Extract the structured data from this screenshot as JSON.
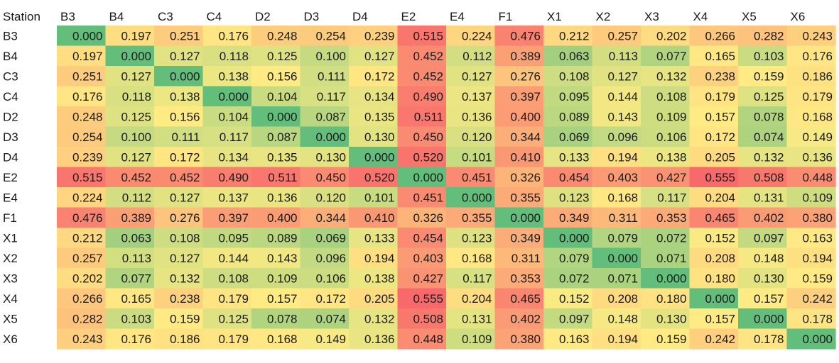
{
  "chart_data": {
    "type": "heatmap",
    "corner_label": "Station",
    "columns": [
      "B3",
      "B4",
      "C3",
      "C4",
      "D2",
      "D3",
      "D4",
      "E2",
      "E4",
      "F1",
      "X1",
      "X2",
      "X3",
      "X4",
      "X5",
      "X6"
    ],
    "rows": [
      "B3",
      "B4",
      "C3",
      "C4",
      "D2",
      "D3",
      "D4",
      "E2",
      "E4",
      "F1",
      "X1",
      "X2",
      "X3",
      "X4",
      "X5",
      "X6"
    ],
    "values": [
      [
        "0.000",
        "0.197",
        "0.251",
        "0.176",
        "0.248",
        "0.254",
        "0.239",
        "0.515",
        "0.224",
        "0.476",
        "0.212",
        "0.257",
        "0.202",
        "0.266",
        "0.282",
        "0.243"
      ],
      [
        "0.197",
        "0.000",
        "0.127",
        "0.118",
        "0.125",
        "0.100",
        "0.127",
        "0.452",
        "0.112",
        "0.389",
        "0.063",
        "0.113",
        "0.077",
        "0.165",
        "0.103",
        "0.176"
      ],
      [
        "0.251",
        "0.127",
        "0.000",
        "0.138",
        "0.156",
        "0.111",
        "0.172",
        "0.452",
        "0.127",
        "0.276",
        "0.108",
        "0.127",
        "0.132",
        "0.238",
        "0.159",
        "0.186"
      ],
      [
        "0.176",
        "0.118",
        "0.138",
        "0.000",
        "0.104",
        "0.117",
        "0.134",
        "0.490",
        "0.137",
        "0.397",
        "0.095",
        "0.144",
        "0.108",
        "0.179",
        "0.125",
        "0.179"
      ],
      [
        "0.248",
        "0.125",
        "0.156",
        "0.104",
        "0.000",
        "0.087",
        "0.135",
        "0.511",
        "0.136",
        "0.400",
        "0.089",
        "0.143",
        "0.109",
        "0.157",
        "0.078",
        "0.168"
      ],
      [
        "0.254",
        "0.100",
        "0.111",
        "0.117",
        "0.087",
        "0.000",
        "0.130",
        "0.450",
        "0.120",
        "0.344",
        "0.069",
        "0.096",
        "0.106",
        "0.172",
        "0.074",
        "0.149"
      ],
      [
        "0.239",
        "0.127",
        "0.172",
        "0.134",
        "0.135",
        "0.130",
        "0.000",
        "0.520",
        "0.101",
        "0.410",
        "0.133",
        "0.194",
        "0.138",
        "0.205",
        "0.132",
        "0.136"
      ],
      [
        "0.515",
        "0.452",
        "0.452",
        "0.490",
        "0.511",
        "0.450",
        "0.520",
        "0.000",
        "0.451",
        "0.326",
        "0.454",
        "0.403",
        "0.427",
        "0.555",
        "0.508",
        "0.448"
      ],
      [
        "0.224",
        "0.112",
        "0.127",
        "0.137",
        "0.136",
        "0.120",
        "0.101",
        "0.451",
        "0.000",
        "0.355",
        "0.123",
        "0.168",
        "0.117",
        "0.204",
        "0.131",
        "0.109"
      ],
      [
        "0.476",
        "0.389",
        "0.276",
        "0.397",
        "0.400",
        "0.344",
        "0.410",
        "0.326",
        "0.355",
        "0.000",
        "0.349",
        "0.311",
        "0.353",
        "0.465",
        "0.402",
        "0.380"
      ],
      [
        "0.212",
        "0.063",
        "0.108",
        "0.095",
        "0.089",
        "0.069",
        "0.133",
        "0.454",
        "0.123",
        "0.349",
        "0.000",
        "0.079",
        "0.072",
        "0.152",
        "0.097",
        "0.163"
      ],
      [
        "0.257",
        "0.113",
        "0.127",
        "0.144",
        "0.143",
        "0.096",
        "0.194",
        "0.403",
        "0.168",
        "0.311",
        "0.079",
        "0.000",
        "0.071",
        "0.208",
        "0.148",
        "0.194"
      ],
      [
        "0.202",
        "0.077",
        "0.132",
        "0.108",
        "0.109",
        "0.106",
        "0.138",
        "0.427",
        "0.117",
        "0.353",
        "0.072",
        "0.071",
        "0.000",
        "0.180",
        "0.130",
        "0.159"
      ],
      [
        "0.266",
        "0.165",
        "0.238",
        "0.179",
        "0.157",
        "0.172",
        "0.205",
        "0.555",
        "0.204",
        "0.465",
        "0.152",
        "0.208",
        "0.180",
        "0.000",
        "0.157",
        "0.242"
      ],
      [
        "0.282",
        "0.103",
        "0.159",
        "0.125",
        "0.078",
        "0.074",
        "0.132",
        "0.508",
        "0.131",
        "0.402",
        "0.097",
        "0.148",
        "0.130",
        "0.157",
        "0.000",
        "0.178"
      ],
      [
        "0.243",
        "0.176",
        "0.186",
        "0.179",
        "0.168",
        "0.149",
        "0.136",
        "0.448",
        "0.109",
        "0.380",
        "0.163",
        "0.194",
        "0.159",
        "0.242",
        "0.178",
        "0.000"
      ]
    ],
    "color_scale": {
      "low": "#63be7b",
      "mid": "#ffeb84",
      "high": "#f8696b"
    },
    "text_color": "#1a1a1a",
    "grid": false,
    "legend": "none"
  }
}
